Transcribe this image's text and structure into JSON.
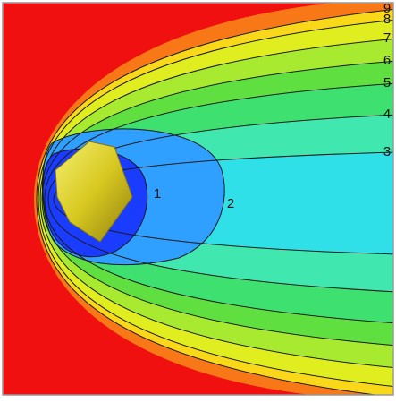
{
  "chart_data": {
    "type": "contour",
    "levels": [
      1,
      2,
      3,
      4,
      5,
      6,
      7,
      8,
      9
    ],
    "colors": [
      "#1a3cff",
      "#2fa0ff",
      "#30e0e8",
      "#40e8b0",
      "#3ee070",
      "#60e040",
      "#a8ea30",
      "#e0ee20",
      "#f8d818"
    ],
    "line_color": "#1a1a1a"
  }
}
